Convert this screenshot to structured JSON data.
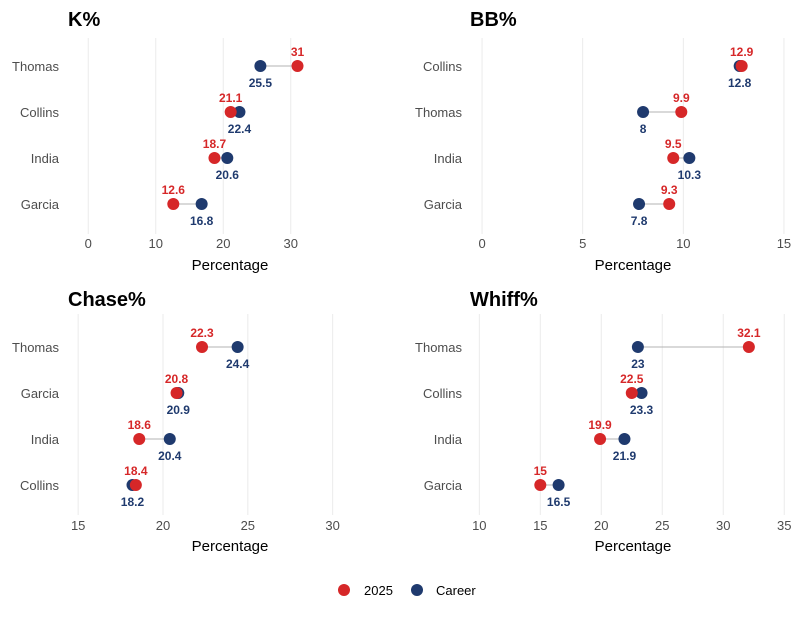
{
  "colors": {
    "season": "#d62728",
    "career": "#1f3a6e"
  },
  "legend": {
    "season_label": "2025",
    "career_label": "Career"
  },
  "chart_data": [
    {
      "type": "dumbbell",
      "title": "K%",
      "xlabel": "Percentage",
      "xlim": [
        -3,
        45
      ],
      "xticks": [
        0,
        10,
        20,
        30
      ],
      "categories": [
        "Thomas",
        "Collins",
        "India",
        "Garcia"
      ],
      "series": [
        {
          "name": "2025",
          "values": [
            31,
            21.1,
            18.7,
            12.6
          ]
        },
        {
          "name": "Career",
          "values": [
            25.5,
            22.4,
            20.6,
            16.8
          ]
        }
      ]
    },
    {
      "type": "dumbbell",
      "title": "BB%",
      "xlabel": "Percentage",
      "xlim": [
        -0.5,
        15.5
      ],
      "xticks": [
        0,
        5,
        10,
        15
      ],
      "categories": [
        "Collins",
        "Thomas",
        "India",
        "Garcia"
      ],
      "series": [
        {
          "name": "2025",
          "values": [
            12.9,
            9.9,
            9.5,
            9.3
          ]
        },
        {
          "name": "Career",
          "values": [
            12.8,
            8,
            10.3,
            7.8
          ]
        }
      ]
    },
    {
      "type": "dumbbell",
      "title": "Chase%",
      "xlabel": "Percentage",
      "xlim": [
        14.4,
        33.5
      ],
      "xticks": [
        15,
        20,
        25,
        30
      ],
      "categories": [
        "Thomas",
        "Garcia",
        "India",
        "Collins"
      ],
      "series": [
        {
          "name": "2025",
          "values": [
            22.3,
            20.8,
            18.6,
            18.4
          ]
        },
        {
          "name": "Career",
          "values": [
            24.4,
            20.9,
            20.4,
            18.2
          ]
        }
      ]
    },
    {
      "type": "dumbbell",
      "title": "Whiff%",
      "xlabel": "Percentage",
      "xlim": [
        9.4,
        35.8
      ],
      "xticks": [
        10,
        15,
        20,
        25,
        30,
        35
      ],
      "categories": [
        "Thomas",
        "Collins",
        "India",
        "Garcia"
      ],
      "series": [
        {
          "name": "2025",
          "values": [
            32.1,
            22.5,
            19.9,
            15
          ]
        },
        {
          "name": "Career",
          "values": [
            23,
            23.3,
            21.9,
            16.5
          ]
        }
      ]
    }
  ]
}
